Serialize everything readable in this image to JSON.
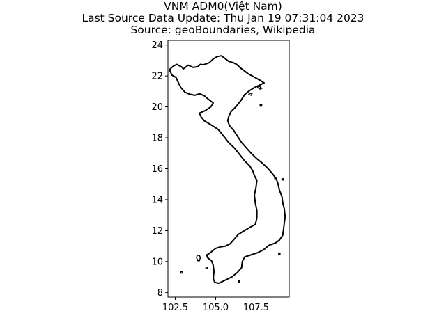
{
  "title_lines": [
    "VNM ADM0(Việt Nam)",
    "Last Source Data Update: Thu Jan 19 07:31:04 2023",
    "Source: geoBoundaries, Wikipedia"
  ],
  "chart_data": {
    "type": "map",
    "x_ticks": [
      102.5,
      105.0,
      107.5
    ],
    "x_tick_labels": [
      "102.5",
      "105.0",
      "107.5"
    ],
    "y_ticks": [
      8,
      10,
      12,
      14,
      16,
      18,
      20,
      22,
      24
    ],
    "y_tick_labels": [
      "8",
      "10",
      "12",
      "14",
      "16",
      "18",
      "20",
      "22",
      "24"
    ],
    "xlim": [
      102.05,
      109.55
    ],
    "ylim": [
      7.7,
      24.3
    ],
    "grid": false,
    "outline_color": "#000000",
    "mainland": [
      [
        102.14,
        22.4
      ],
      [
        102.4,
        22.65
      ],
      [
        102.6,
        22.75
      ],
      [
        102.9,
        22.58
      ],
      [
        103.0,
        22.45
      ],
      [
        103.3,
        22.7
      ],
      [
        103.6,
        22.55
      ],
      [
        103.9,
        22.6
      ],
      [
        104.05,
        22.75
      ],
      [
        104.25,
        22.72
      ],
      [
        104.6,
        22.85
      ],
      [
        104.85,
        23.1
      ],
      [
        105.1,
        23.25
      ],
      [
        105.35,
        23.3
      ],
      [
        105.55,
        23.15
      ],
      [
        105.8,
        22.95
      ],
      [
        106.1,
        22.85
      ],
      [
        106.3,
        22.75
      ],
      [
        106.55,
        22.5
      ],
      [
        106.75,
        22.35
      ],
      [
        107.0,
        22.15
      ],
      [
        107.35,
        21.95
      ],
      [
        107.7,
        21.75
      ],
      [
        108.0,
        21.55
      ],
      [
        107.7,
        21.4
      ],
      [
        107.4,
        21.25
      ],
      [
        107.1,
        21.05
      ],
      [
        106.8,
        20.8
      ],
      [
        106.55,
        20.4
      ],
      [
        106.25,
        20.0
      ],
      [
        105.95,
        19.7
      ],
      [
        105.8,
        19.35
      ],
      [
        105.75,
        19.1
      ],
      [
        105.85,
        18.8
      ],
      [
        106.1,
        18.5
      ],
      [
        106.35,
        18.1
      ],
      [
        106.6,
        17.7
      ],
      [
        106.9,
        17.35
      ],
      [
        107.2,
        17.0
      ],
      [
        107.55,
        16.65
      ],
      [
        107.9,
        16.35
      ],
      [
        108.2,
        16.05
      ],
      [
        108.5,
        15.7
      ],
      [
        108.75,
        15.35
      ],
      [
        108.85,
        15.05
      ],
      [
        108.95,
        14.6
      ],
      [
        109.1,
        14.2
      ],
      [
        109.15,
        13.8
      ],
      [
        109.25,
        13.4
      ],
      [
        109.3,
        12.9
      ],
      [
        109.25,
        12.5
      ],
      [
        109.2,
        12.1
      ],
      [
        109.15,
        11.7
      ],
      [
        108.95,
        11.4
      ],
      [
        108.7,
        11.2
      ],
      [
        108.3,
        11.05
      ],
      [
        107.95,
        10.75
      ],
      [
        107.55,
        10.55
      ],
      [
        107.1,
        10.4
      ],
      [
        106.8,
        10.3
      ],
      [
        106.65,
        10.0
      ],
      [
        106.6,
        9.6
      ],
      [
        106.35,
        9.3
      ],
      [
        106.0,
        9.0
      ],
      [
        105.6,
        8.8
      ],
      [
        105.2,
        8.6
      ],
      [
        104.95,
        8.65
      ],
      [
        104.85,
        8.9
      ],
      [
        104.9,
        9.35
      ],
      [
        104.85,
        9.75
      ],
      [
        104.75,
        10.05
      ],
      [
        104.5,
        10.25
      ],
      [
        104.45,
        10.42
      ],
      [
        104.65,
        10.55
      ],
      [
        105.0,
        10.85
      ],
      [
        105.3,
        10.95
      ],
      [
        105.6,
        11.0
      ],
      [
        105.9,
        11.15
      ],
      [
        106.15,
        11.45
      ],
      [
        106.4,
        11.75
      ],
      [
        106.7,
        11.95
      ],
      [
        107.1,
        12.2
      ],
      [
        107.45,
        12.4
      ],
      [
        107.55,
        12.8
      ],
      [
        107.55,
        13.3
      ],
      [
        107.45,
        13.8
      ],
      [
        107.4,
        14.3
      ],
      [
        107.5,
        14.8
      ],
      [
        107.55,
        15.25
      ],
      [
        107.4,
        15.55
      ],
      [
        107.3,
        15.85
      ],
      [
        107.1,
        16.2
      ],
      [
        106.8,
        16.5
      ],
      [
        106.5,
        16.9
      ],
      [
        106.2,
        17.3
      ],
      [
        105.8,
        17.7
      ],
      [
        105.5,
        18.1
      ],
      [
        105.15,
        18.55
      ],
      [
        104.7,
        18.85
      ],
      [
        104.3,
        19.1
      ],
      [
        104.1,
        19.35
      ],
      [
        104.0,
        19.6
      ],
      [
        104.35,
        19.75
      ],
      [
        104.7,
        20.0
      ],
      [
        104.85,
        20.25
      ],
      [
        104.55,
        20.5
      ],
      [
        104.3,
        20.72
      ],
      [
        104.0,
        20.85
      ],
      [
        103.7,
        20.75
      ],
      [
        103.4,
        20.82
      ],
      [
        103.1,
        20.95
      ],
      [
        102.85,
        21.25
      ],
      [
        102.7,
        21.55
      ],
      [
        102.55,
        21.9
      ],
      [
        102.3,
        22.05
      ],
      [
        102.14,
        22.4
      ]
    ],
    "islands": [
      [
        [
          103.85,
          10.4
        ],
        [
          104.0,
          10.4
        ],
        [
          104.05,
          10.25
        ],
        [
          104.0,
          10.05
        ],
        [
          103.9,
          10.05
        ],
        [
          103.82,
          10.25
        ],
        [
          103.85,
          10.4
        ]
      ],
      [
        [
          107.6,
          21.35
        ],
        [
          107.75,
          21.3
        ],
        [
          107.85,
          21.2
        ],
        [
          107.75,
          21.15
        ],
        [
          107.6,
          21.25
        ],
        [
          107.6,
          21.35
        ]
      ],
      [
        [
          107.1,
          20.9
        ],
        [
          107.25,
          20.85
        ],
        [
          107.2,
          20.75
        ],
        [
          107.05,
          20.8
        ],
        [
          107.1,
          20.9
        ]
      ],
      [
        [
          107.75,
          20.15
        ],
        [
          107.85,
          20.15
        ],
        [
          107.85,
          20.05
        ],
        [
          107.75,
          20.05
        ],
        [
          107.75,
          20.15
        ]
      ],
      [
        [
          106.4,
          8.75
        ],
        [
          106.48,
          8.75
        ],
        [
          106.48,
          8.67
        ],
        [
          106.4,
          8.67
        ],
        [
          106.4,
          8.75
        ]
      ],
      [
        [
          102.85,
          9.35
        ],
        [
          102.95,
          9.35
        ],
        [
          102.95,
          9.25
        ],
        [
          102.85,
          9.25
        ],
        [
          102.85,
          9.35
        ]
      ],
      [
        [
          104.4,
          9.65
        ],
        [
          104.5,
          9.65
        ],
        [
          104.5,
          9.55
        ],
        [
          104.4,
          9.55
        ],
        [
          104.4,
          9.65
        ]
      ],
      [
        [
          108.9,
          10.55
        ],
        [
          108.98,
          10.55
        ],
        [
          108.98,
          10.47
        ],
        [
          108.9,
          10.47
        ],
        [
          108.9,
          10.55
        ]
      ],
      [
        [
          109.1,
          15.35
        ],
        [
          109.18,
          15.35
        ],
        [
          109.18,
          15.27
        ],
        [
          109.1,
          15.27
        ],
        [
          109.1,
          15.35
        ]
      ],
      [
        [
          108.65,
          15.45
        ],
        [
          108.73,
          15.45
        ],
        [
          108.73,
          15.37
        ],
        [
          108.65,
          15.37
        ],
        [
          108.65,
          15.45
        ]
      ]
    ]
  }
}
